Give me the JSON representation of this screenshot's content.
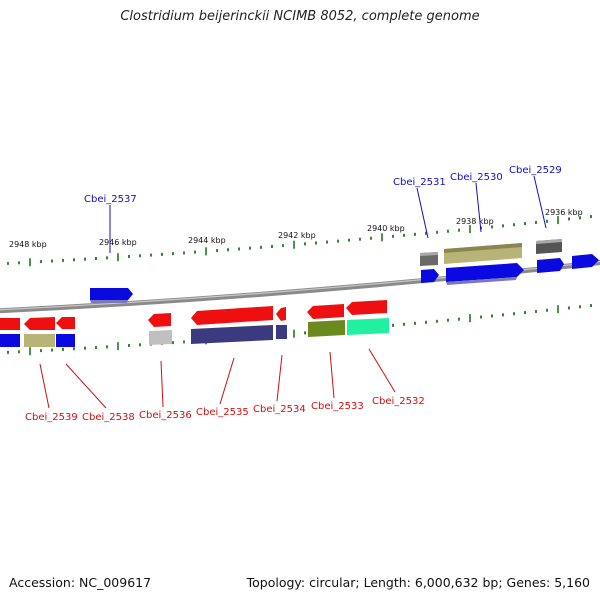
{
  "title": "Clostridium beijerinckii NCIMB 8052, complete genome",
  "footer": {
    "accession": "Accession: NC_009617",
    "summary": "Topology: circular; Length: 6,000,632 bp; Genes: 5,160"
  },
  "scale_labels": [
    "2948 kbp",
    "2946 kbp",
    "2944 kbp",
    "2942 kbp",
    "2940 kbp",
    "2938 kbp",
    "2936 kbp"
  ],
  "genes_top": [
    "Cbei_2537",
    "Cbei_2531",
    "Cbei_2530",
    "Cbei_2529"
  ],
  "genes_bottom": [
    "Cbei_2539",
    "Cbei_2538",
    "Cbei_2536",
    "Cbei_2535",
    "Cbei_2534",
    "Cbei_2533",
    "Cbei_2532"
  ],
  "colors": {
    "forward_label": "#1010c0",
    "reverse_label": "#d01010",
    "tick": "#1a7a1a",
    "backbone": "#8a8a8a"
  }
}
